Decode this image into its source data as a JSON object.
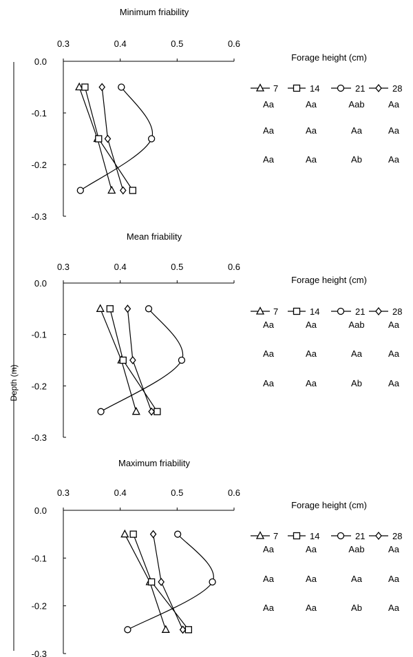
{
  "ylabel": "Depth (m)",
  "chart_data": [
    {
      "type": "line",
      "title": "Minimum friability",
      "xlim": [
        0.3,
        0.6
      ],
      "ylim": [
        -0.3,
        0.0
      ],
      "xticks": [
        "0.3",
        "0.4",
        "0.5",
        "0.6"
      ],
      "yticks": [
        "0.0",
        "-0.1",
        "-0.2",
        "-0.3"
      ],
      "legend_title": "Forage height (cm)",
      "series": [
        {
          "name": "7",
          "marker": "triangle",
          "y": [
            -0.05,
            -0.15,
            -0.25
          ],
          "x": [
            0.328,
            0.36,
            0.385
          ]
        },
        {
          "name": "14",
          "marker": "square",
          "y": [
            -0.05,
            -0.15,
            -0.25
          ],
          "x": [
            0.338,
            0.362,
            0.422
          ]
        },
        {
          "name": "21",
          "marker": "circle",
          "y": [
            -0.05,
            -0.15,
            -0.25
          ],
          "x": [
            0.402,
            0.455,
            0.33
          ]
        },
        {
          "name": "28",
          "marker": "diamond",
          "y": [
            -0.05,
            -0.15,
            -0.25
          ],
          "x": [
            0.368,
            0.378,
            0.405
          ]
        }
      ],
      "letters": [
        [
          "Aa",
          "Aa",
          "Aab",
          "Aa"
        ],
        [
          "Aa",
          "Aa",
          "Aa",
          "Aa"
        ],
        [
          "Aa",
          "Aa",
          "Ab",
          "Aa"
        ]
      ]
    },
    {
      "type": "line",
      "title": "Mean friability",
      "xlim": [
        0.3,
        0.6
      ],
      "ylim": [
        -0.3,
        0.0
      ],
      "xticks": [
        "0.3",
        "0.4",
        "0.5",
        "0.6"
      ],
      "yticks": [
        "0.0",
        "-0.1",
        "-0.2",
        "-0.3"
      ],
      "legend_title": "Forage height (cm)",
      "series": [
        {
          "name": "7",
          "marker": "triangle",
          "y": [
            -0.05,
            -0.15,
            -0.25
          ],
          "x": [
            0.365,
            0.402,
            0.428
          ]
        },
        {
          "name": "14",
          "marker": "square",
          "y": [
            -0.05,
            -0.15,
            -0.25
          ],
          "x": [
            0.382,
            0.405,
            0.465
          ]
        },
        {
          "name": "21",
          "marker": "circle",
          "y": [
            -0.05,
            -0.15,
            -0.25
          ],
          "x": [
            0.45,
            0.508,
            0.366
          ]
        },
        {
          "name": "28",
          "marker": "diamond",
          "y": [
            -0.05,
            -0.15,
            -0.25
          ],
          "x": [
            0.413,
            0.422,
            0.455
          ]
        }
      ],
      "letters": [
        [
          "Aa",
          "Aa",
          "Aab",
          "Aa"
        ],
        [
          "Aa",
          "Aa",
          "Aa",
          "Aa"
        ],
        [
          "Aa",
          "Aa",
          "Ab",
          "Aa"
        ]
      ]
    },
    {
      "type": "line",
      "title": "Maximum friability",
      "xlim": [
        0.3,
        0.6
      ],
      "ylim": [
        -0.3,
        0.0
      ],
      "xticks": [
        "0.3",
        "0.4",
        "0.5",
        "0.6"
      ],
      "yticks": [
        "0.0",
        "-0.1",
        "-0.2",
        "-0.3"
      ],
      "legend_title": "Forage height (cm)",
      "series": [
        {
          "name": "7",
          "marker": "triangle",
          "y": [
            -0.05,
            -0.15,
            -0.25
          ],
          "x": [
            0.408,
            0.452,
            0.48
          ]
        },
        {
          "name": "14",
          "marker": "square",
          "y": [
            -0.05,
            -0.15,
            -0.25
          ],
          "x": [
            0.423,
            0.455,
            0.52
          ]
        },
        {
          "name": "21",
          "marker": "circle",
          "y": [
            -0.05,
            -0.15,
            -0.25
          ],
          "x": [
            0.501,
            0.562,
            0.413
          ]
        },
        {
          "name": "28",
          "marker": "diamond",
          "y": [
            -0.05,
            -0.15,
            -0.25
          ],
          "x": [
            0.458,
            0.472,
            0.51
          ]
        }
      ],
      "letters": [
        [
          "Aa",
          "Aa",
          "Aab",
          "Aa"
        ],
        [
          "Aa",
          "Aa",
          "Aa",
          "Aa"
        ],
        [
          "Aa",
          "Aa",
          "Ab",
          "Aa"
        ]
      ]
    }
  ]
}
